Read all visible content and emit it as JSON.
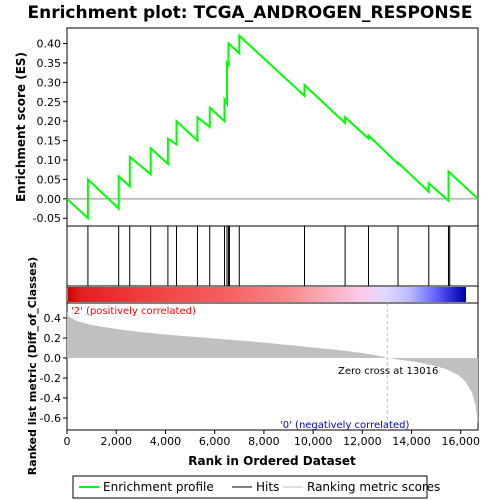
{
  "title": "Enrichment plot: TCGA_ANDROGEN_RESPONSE",
  "colors": {
    "enrichment_line": "#00ff00",
    "hit_line": "#000000",
    "metric_fill": "#c0c0c0",
    "positive_label": "#ff0000",
    "negative_label": "#0000cc",
    "zero_cross_line": "#bbbbbb"
  },
  "chart_data": [
    {
      "type": "line",
      "name": "enrichment-plot",
      "ylabel": "Enrichment score (ES)",
      "xlim": [
        0,
        16700
      ],
      "ylim": [
        -0.07,
        0.44
      ],
      "y_ticks": [
        "-0.05",
        "0.00",
        "0.05",
        "0.10",
        "0.15",
        "0.20",
        "0.25",
        "0.30",
        "0.35",
        "0.40"
      ],
      "grid": false,
      "series": [
        {
          "points": [
            [
              0,
              0.0
            ],
            [
              850,
              -0.05
            ],
            [
              851,
              0.05
            ],
            [
              2100,
              -0.025
            ],
            [
              2101,
              0.058
            ],
            [
              2550,
              0.032
            ],
            [
              2551,
              0.108
            ],
            [
              3400,
              0.063
            ],
            [
              3401,
              0.13
            ],
            [
              4100,
              0.09
            ],
            [
              4101,
              0.155
            ],
            [
              4450,
              0.14
            ],
            [
              4451,
              0.2
            ],
            [
              5300,
              0.15
            ],
            [
              5301,
              0.21
            ],
            [
              5800,
              0.185
            ],
            [
              5801,
              0.235
            ],
            [
              6400,
              0.2
            ],
            [
              6401,
              0.255
            ],
            [
              6500,
              0.245
            ],
            [
              6501,
              0.35
            ],
            [
              6560,
              0.345
            ],
            [
              6561,
              0.4
            ],
            [
              7000,
              0.375
            ],
            [
              7001,
              0.42
            ],
            [
              9650,
              0.265
            ],
            [
              9651,
              0.293
            ],
            [
              11300,
              0.195
            ],
            [
              11301,
              0.21
            ],
            [
              12250,
              0.155
            ],
            [
              12251,
              0.163
            ],
            [
              13450,
              0.09
            ],
            [
              13451,
              0.093
            ],
            [
              14700,
              0.018
            ],
            [
              14701,
              0.04
            ],
            [
              15500,
              -0.005
            ],
            [
              15501,
              0.07
            ],
            [
              16700,
              0.0
            ]
          ]
        }
      ]
    },
    {
      "type": "scatter",
      "name": "hits",
      "x": [
        850,
        2100,
        2550,
        3400,
        4100,
        4450,
        5300,
        5800,
        6400,
        6500,
        6560,
        6600,
        7000,
        9650,
        11300,
        12250,
        13450,
        14700,
        15500,
        15550
      ]
    },
    {
      "type": "area",
      "name": "ranked-list-metric",
      "ylabel": "Ranked list metric (Diff_of_Classes)",
      "xlabel": "Rank in Ordered Dataset",
      "xlim": [
        0,
        16700
      ],
      "ylim": [
        -0.72,
        0.55
      ],
      "x_ticks": [
        "0",
        "2,000",
        "4,000",
        "6,000",
        "8,000",
        "10,000",
        "12,000",
        "14,000",
        "16,000"
      ],
      "y_ticks": [
        "-0.6",
        "-0.4",
        "-0.2",
        "0.0",
        "0.2",
        "0.4"
      ],
      "zero_cross": 13016,
      "zero_cross_label": "Zero cross at 13016",
      "positive_label": "'2' (positively correlated)",
      "negative_label": "'0' (negatively correlated)",
      "series": [
        {
          "points": [
            [
              0,
              0.46
            ],
            [
              100,
              0.41
            ],
            [
              400,
              0.37
            ],
            [
              1000,
              0.33
            ],
            [
              2000,
              0.29
            ],
            [
              3000,
              0.26
            ],
            [
              4000,
              0.235
            ],
            [
              5000,
              0.215
            ],
            [
              6000,
              0.195
            ],
            [
              7000,
              0.175
            ],
            [
              8000,
              0.155
            ],
            [
              9000,
              0.13
            ],
            [
              10000,
              0.105
            ],
            [
              11000,
              0.08
            ],
            [
              12000,
              0.05
            ],
            [
              12700,
              0.02
            ],
            [
              13016,
              0.0
            ],
            [
              13600,
              -0.02
            ],
            [
              14200,
              -0.04
            ],
            [
              14800,
              -0.07
            ],
            [
              15400,
              -0.11
            ],
            [
              15900,
              -0.17
            ],
            [
              16200,
              -0.24
            ],
            [
              16450,
              -0.34
            ],
            [
              16600,
              -0.47
            ],
            [
              16700,
              -0.66
            ]
          ]
        }
      ]
    }
  ],
  "legend": {
    "items": [
      {
        "label": "Enrichment profile",
        "color": "#00ff00"
      },
      {
        "label": "Hits",
        "color": "#000000"
      },
      {
        "label": "Ranking metric scores",
        "color": "#c0c0c0"
      }
    ]
  }
}
